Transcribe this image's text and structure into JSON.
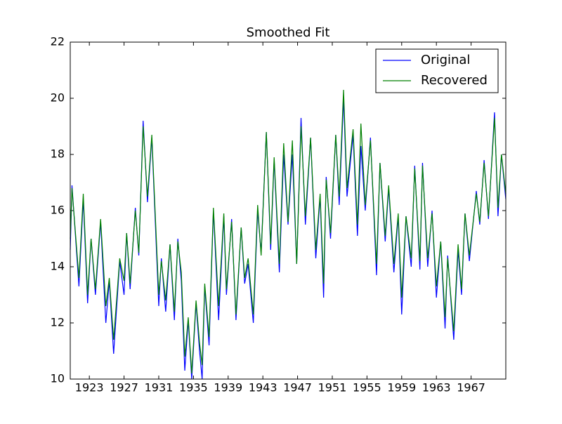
{
  "chart_data": {
    "type": "line",
    "title": "Smoothed Fit",
    "x": [
      1920.8,
      1921.0,
      1921.8,
      1922.3,
      1922.8,
      1923.2,
      1923.7,
      1924.3,
      1924.9,
      1925.3,
      1925.8,
      1926.5,
      1927.0,
      1927.3,
      1927.7,
      1928.3,
      1928.7,
      1929.2,
      1929.7,
      1930.2,
      1931.0,
      1931.3,
      1931.8,
      1932.3,
      1932.8,
      1933.2,
      1933.6,
      1934.0,
      1934.4,
      1934.8,
      1935.3,
      1935.7,
      1936.0,
      1936.3,
      1936.8,
      1937.3,
      1937.9,
      1938.5,
      1938.8,
      1939.4,
      1939.9,
      1940.5,
      1940.9,
      1941.3,
      1941.9,
      1942.4,
      1942.8,
      1943.4,
      1943.9,
      1944.3,
      1944.9,
      1945.4,
      1945.9,
      1946.4,
      1946.9,
      1947.4,
      1947.9,
      1948.5,
      1949.1,
      1949.6,
      1950.0,
      1950.3,
      1950.8,
      1951.4,
      1951.8,
      1952.3,
      1952.7,
      1953.4,
      1953.9,
      1954.3,
      1954.8,
      1955.4,
      1956.1,
      1956.5,
      1957.1,
      1957.5,
      1958.1,
      1958.6,
      1959.0,
      1959.5,
      1960.1,
      1960.5,
      1961.1,
      1961.4,
      1962.0,
      1962.5,
      1963.0,
      1963.5,
      1964.0,
      1964.3,
      1965.0,
      1965.5,
      1965.9,
      1966.3,
      1966.8,
      1967.6,
      1968.0,
      1968.5,
      1969.0,
      1969.7,
      1970.1,
      1970.5,
      1971.0
    ],
    "series": [
      {
        "name": "Original",
        "color": "#0000ff",
        "values": [
          14.6,
          16.9,
          13.3,
          16.4,
          12.7,
          15.0,
          13.0,
          15.6,
          12.0,
          13.5,
          10.9,
          14.2,
          13.0,
          15.2,
          13.2,
          16.1,
          14.4,
          19.2,
          16.3,
          18.6,
          12.6,
          14.3,
          12.4,
          14.8,
          12.1,
          15.0,
          13.5,
          10.3,
          12.1,
          10.0,
          12.7,
          11.0,
          10.0,
          13.3,
          11.2,
          16.0,
          12.1,
          15.8,
          13.0,
          15.7,
          12.1,
          15.4,
          13.4,
          14.1,
          12.0,
          16.0,
          14.5,
          18.8,
          14.6,
          17.8,
          13.8,
          18.0,
          15.5,
          18.0,
          14.1,
          19.3,
          15.5,
          18.6,
          14.3,
          16.5,
          12.9,
          17.2,
          15.0,
          18.7,
          16.2,
          20.0,
          16.5,
          18.7,
          15.1,
          18.3,
          16.0,
          18.6,
          13.7,
          17.7,
          14.9,
          16.8,
          13.8,
          15.8,
          12.3,
          15.8,
          14.0,
          17.6,
          13.9,
          17.7,
          14.0,
          16.0,
          12.9,
          14.9,
          11.8,
          14.4,
          11.4,
          14.6,
          13.0,
          15.9,
          14.2,
          16.7,
          15.5,
          17.8,
          15.7,
          19.5,
          15.8,
          18.0,
          16.4
        ]
      },
      {
        "name": "Recovered",
        "color": "#008000",
        "values": [
          15.0,
          16.8,
          13.6,
          16.6,
          13.0,
          15.0,
          13.2,
          15.7,
          12.6,
          13.6,
          11.4,
          14.3,
          13.5,
          15.2,
          13.4,
          16.0,
          14.5,
          19.0,
          16.5,
          18.7,
          13.0,
          14.2,
          12.8,
          14.8,
          12.4,
          14.9,
          13.8,
          10.8,
          12.2,
          10.2,
          12.8,
          11.3,
          10.5,
          13.4,
          11.5,
          16.1,
          12.6,
          15.9,
          13.2,
          15.6,
          12.3,
          15.4,
          13.6,
          14.3,
          12.3,
          16.2,
          14.4,
          18.8,
          14.8,
          17.9,
          14.1,
          18.4,
          15.6,
          18.5,
          14.1,
          19.0,
          15.8,
          18.6,
          14.6,
          16.6,
          13.4,
          17.1,
          15.2,
          18.7,
          16.5,
          20.3,
          16.8,
          18.9,
          15.5,
          19.1,
          16.2,
          18.5,
          14.1,
          17.7,
          15.1,
          16.9,
          14.1,
          15.9,
          12.9,
          15.8,
          14.3,
          17.5,
          14.2,
          17.6,
          14.3,
          15.9,
          13.3,
          14.9,
          12.2,
          14.3,
          11.7,
          14.8,
          13.2,
          15.9,
          14.4,
          16.6,
          15.6,
          17.7,
          15.8,
          19.3,
          16.1,
          18.0,
          16.6
        ]
      }
    ],
    "xlim": [
      1920.8,
      1971.0
    ],
    "xticks": [
      1923,
      1927,
      1931,
      1935,
      1939,
      1943,
      1947,
      1951,
      1955,
      1959,
      1963,
      1967
    ],
    "ylim": [
      10,
      22
    ],
    "yticks": [
      10,
      12,
      14,
      16,
      18,
      20,
      22
    ],
    "legend": "upper right"
  }
}
